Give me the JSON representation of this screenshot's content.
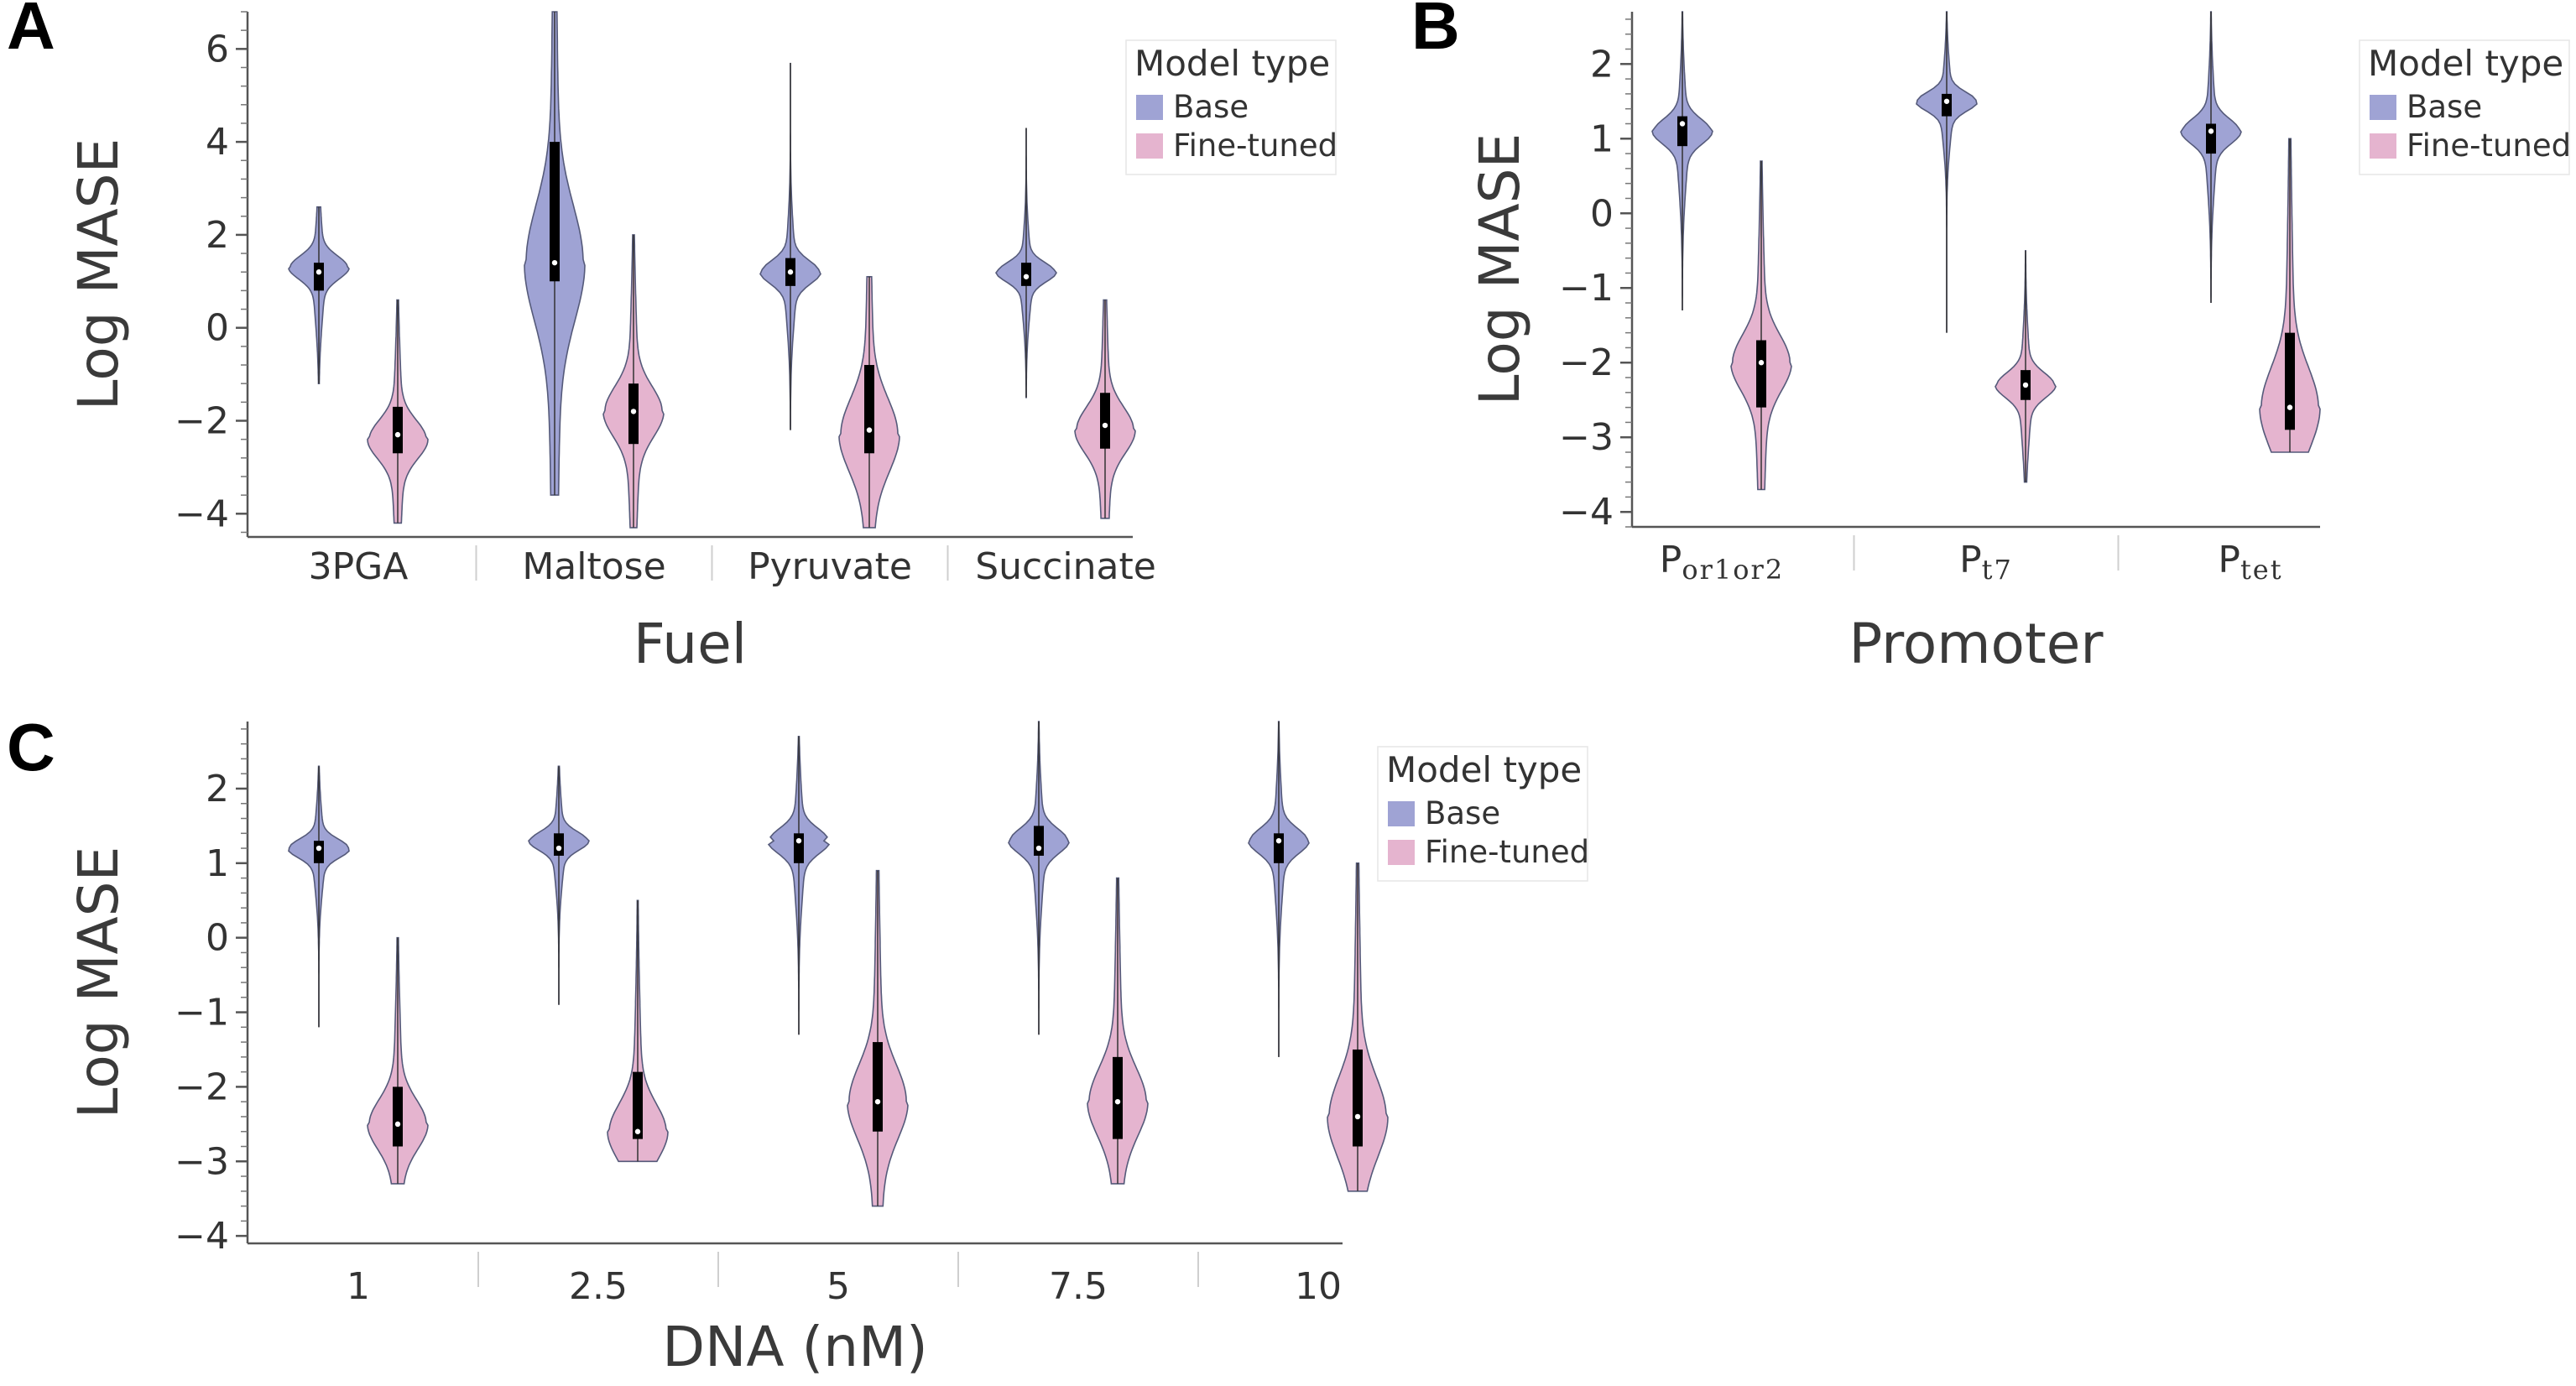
{
  "colors": {
    "Base": "#9fa3d4",
    "Fine-tuned": "#e5b4cf",
    "outline": "#555a7a",
    "box": "#000000"
  },
  "legend": {
    "title": "Model type",
    "entries": [
      "Base",
      "Fine-tuned"
    ]
  },
  "chart_data": [
    {
      "panel": "A",
      "type": "violin",
      "xlabel": "Fuel",
      "ylabel": "Log MASE",
      "ylim": [
        -4.5,
        6.8
      ],
      "yticks": [
        -4,
        -2,
        0,
        2,
        4,
        6
      ],
      "ytick_labels": [
        "−4",
        "−2",
        "0",
        "2",
        "4",
        "6"
      ],
      "categories": [
        {
          "name": "3PGA"
        },
        {
          "name": "Maltose"
        },
        {
          "name": "Pyruvate"
        },
        {
          "name": "Succinate"
        }
      ],
      "series": [
        {
          "name": "Base",
          "stats": [
            {
              "min": -1.2,
              "q1": 0.8,
              "median": 1.2,
              "q3": 1.4,
              "max": 2.6,
              "mode": 1.3
            },
            {
              "min": -3.6,
              "q1": 1.0,
              "median": 1.4,
              "q3": 4.0,
              "max": 6.8,
              "mode": 1.4
            },
            {
              "min": -2.2,
              "q1": 0.9,
              "median": 1.2,
              "q3": 1.5,
              "max": 5.7,
              "mode": 1.2
            },
            {
              "min": -1.5,
              "q1": 0.9,
              "median": 1.1,
              "q3": 1.4,
              "max": 4.3,
              "mode": 1.2
            }
          ]
        },
        {
          "name": "Fine-tuned",
          "stats": [
            {
              "min": -4.2,
              "q1": -2.7,
              "median": -2.3,
              "q3": -1.7,
              "max": 0.6,
              "mode": -2.4
            },
            {
              "min": -4.3,
              "q1": -2.5,
              "median": -1.8,
              "q3": -1.2,
              "max": 2.0,
              "mode": -1.8
            },
            {
              "min": -4.3,
              "q1": -2.7,
              "median": -2.2,
              "q3": -0.8,
              "max": 1.1,
              "mode": -2.3
            },
            {
              "min": -4.1,
              "q1": -2.6,
              "median": -2.1,
              "q3": -1.4,
              "max": 0.6,
              "mode": -2.2
            }
          ]
        }
      ]
    },
    {
      "panel": "B",
      "type": "violin",
      "xlabel": "Promoter",
      "ylabel": "Log MASE",
      "ylim": [
        -4.2,
        2.7
      ],
      "yticks": [
        -4,
        -3,
        -2,
        -1,
        0,
        1,
        2
      ],
      "ytick_labels": [
        "−4",
        "−3",
        "−2",
        "−1",
        "0",
        "1",
        "2"
      ],
      "categories": [
        {
          "name": "P",
          "sub": "or1or2"
        },
        {
          "name": "P",
          "sub": "t7"
        },
        {
          "name": "P",
          "sub": "tet"
        }
      ],
      "series": [
        {
          "name": "Base",
          "stats": [
            {
              "min": -1.3,
              "q1": 0.9,
              "median": 1.2,
              "q3": 1.3,
              "max": 2.7,
              "mode": 1.1
            },
            {
              "min": -1.6,
              "q1": 1.3,
              "median": 1.5,
              "q3": 1.6,
              "max": 2.7,
              "mode": 1.5
            },
            {
              "min": -1.2,
              "q1": 0.8,
              "median": 1.1,
              "q3": 1.2,
              "max": 2.7,
              "mode": 1.1
            }
          ]
        },
        {
          "name": "Fine-tuned",
          "stats": [
            {
              "min": -3.7,
              "q1": -2.6,
              "median": -2.0,
              "q3": -1.7,
              "max": 0.7,
              "mode": -2.0
            },
            {
              "min": -3.6,
              "q1": -2.5,
              "median": -2.3,
              "q3": -2.1,
              "max": -0.5,
              "mode": -2.3
            },
            {
              "min": -3.2,
              "q1": -2.9,
              "median": -2.6,
              "q3": -1.6,
              "max": 1.0,
              "mode": -2.6
            }
          ]
        }
      ]
    },
    {
      "panel": "C",
      "type": "violin",
      "xlabel": "DNA (nM)",
      "ylabel": "Log MASE",
      "ylim": [
        -4.1,
        2.9
      ],
      "yticks": [
        -4,
        -3,
        -2,
        -1,
        0,
        1,
        2
      ],
      "ytick_labels": [
        "−4",
        "−3",
        "−2",
        "−1",
        "0",
        "1",
        "2"
      ],
      "categories": [
        {
          "name": "1"
        },
        {
          "name": "2.5"
        },
        {
          "name": "5"
        },
        {
          "name": "7.5"
        },
        {
          "name": "10"
        }
      ],
      "series": [
        {
          "name": "Base",
          "stats": [
            {
              "min": -1.2,
              "q1": 1.0,
              "median": 1.2,
              "q3": 1.3,
              "max": 2.3,
              "mode": 1.2
            },
            {
              "min": -0.9,
              "q1": 1.1,
              "median": 1.2,
              "q3": 1.4,
              "max": 2.3,
              "mode": 1.3
            },
            {
              "min": -1.3,
              "q1": 1.0,
              "median": 1.3,
              "q3": 1.4,
              "max": 2.7,
              "mode": 1.3
            },
            {
              "min": -1.3,
              "q1": 1.1,
              "median": 1.2,
              "q3": 1.5,
              "max": 2.9,
              "mode": 1.3
            },
            {
              "min": -1.6,
              "q1": 1.0,
              "median": 1.3,
              "q3": 1.4,
              "max": 2.9,
              "mode": 1.3
            }
          ]
        },
        {
          "name": "Fine-tuned",
          "stats": [
            {
              "min": -3.3,
              "q1": -2.8,
              "median": -2.5,
              "q3": -2.0,
              "max": 0.0,
              "mode": -2.5
            },
            {
              "min": -3.0,
              "q1": -2.7,
              "median": -2.6,
              "q3": -1.8,
              "max": 0.5,
              "mode": -2.6
            },
            {
              "min": -3.6,
              "q1": -2.6,
              "median": -2.2,
              "q3": -1.4,
              "max": 0.9,
              "mode": -2.2
            },
            {
              "min": -3.3,
              "q1": -2.7,
              "median": -2.2,
              "q3": -1.6,
              "max": 0.8,
              "mode": -2.2
            },
            {
              "min": -3.4,
              "q1": -2.8,
              "median": -2.4,
              "q3": -1.5,
              "max": 1.0,
              "mode": -2.4
            }
          ]
        }
      ]
    }
  ]
}
